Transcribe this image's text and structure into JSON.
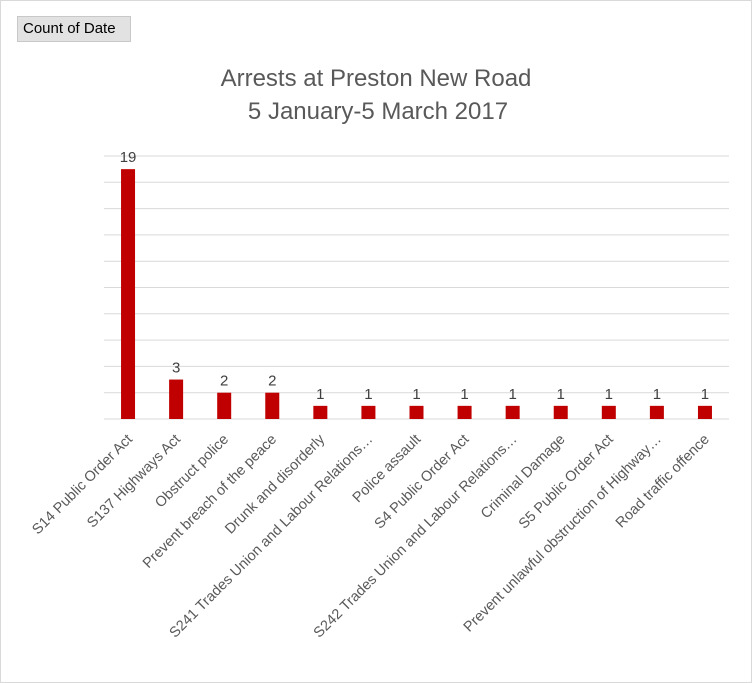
{
  "field_button": {
    "label": "Count of Date"
  },
  "colors": {
    "bar": "#c00000",
    "grid": "#d9d9d9",
    "text": "#595959"
  },
  "chart_data": {
    "type": "bar",
    "title": "Arrests at Preston New Road",
    "subtitle": "5 January-5 March 2017",
    "xlabel": "",
    "ylabel": "",
    "ylim": [
      0,
      20
    ],
    "grid": true,
    "data_labels": true,
    "categories": [
      "S14 Public Order Act",
      "S137 Highways Act",
      "Obstruct police",
      "Prevent breach of the peace",
      "Drunk and disorderly",
      "S241 Trades Union and Labour Relations…",
      "Police assault",
      "S4 Public Order Act",
      "S242 Trades Union and Labour Relations…",
      "Criminal Damage",
      "S5 Public Order Act",
      "Prevent unlawful obstruction of Highway…",
      "Road traffic offence"
    ],
    "series": [
      {
        "values": [
          19,
          3,
          2,
          2,
          1,
          1,
          1,
          1,
          1,
          1,
          1,
          1,
          1
        ]
      }
    ]
  }
}
